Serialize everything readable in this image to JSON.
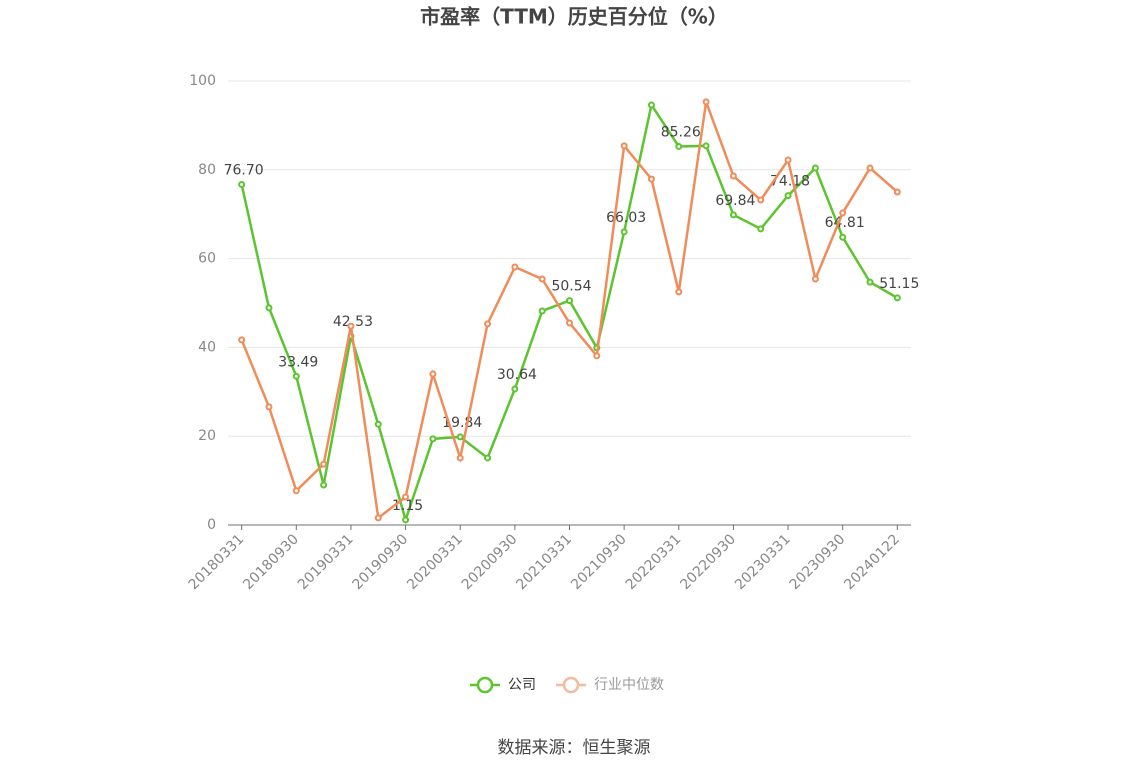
{
  "chart_data": {
    "type": "line",
    "title": "市盈率（TTM）历史百分位（%）",
    "categories": [
      "20180331",
      null,
      "20180930",
      null,
      "20190331",
      null,
      "20190930",
      null,
      "20200331",
      null,
      "20200930",
      null,
      "20210331",
      null,
      "20210930",
      null,
      "20220331",
      null,
      "20220930",
      null,
      "20230331",
      null,
      "20230930",
      null,
      "20240122"
    ],
    "series": [
      {
        "name": "公司",
        "color": "#5cc42f",
        "values": [
          76.7,
          48.9,
          33.49,
          9.0,
          42.53,
          22.7,
          1.15,
          19.4,
          19.84,
          15.1,
          30.64,
          48.2,
          50.54,
          39.9,
          66.03,
          94.6,
          85.26,
          85.4,
          69.84,
          66.7,
          74.18,
          80.4,
          64.81,
          54.7,
          51.15
        ],
        "value_labels": [
          "76.70",
          null,
          "33.49",
          null,
          "42.53",
          null,
          "1.15",
          null,
          "19.84",
          null,
          "30.64",
          null,
          "50.54",
          null,
          "66.03",
          null,
          "85.26",
          null,
          "69.84",
          null,
          "74.18",
          null,
          "64.81",
          null,
          "51.15"
        ]
      },
      {
        "name": "行业中位数",
        "color": "#f08c5a",
        "values": [
          41.7,
          26.6,
          7.7,
          13.7,
          44.8,
          1.6,
          6.3,
          34.0,
          15.1,
          45.3,
          58.1,
          55.4,
          45.5,
          38.1,
          85.4,
          77.9,
          52.5,
          95.3,
          78.6,
          73.2,
          82.2,
          55.4,
          70.3,
          80.4,
          75.0
        ]
      }
    ],
    "ylim": [
      0,
      100
    ],
    "yticks": [
      0,
      20,
      40,
      60,
      80,
      100
    ],
    "grid": true,
    "legend": "bottom",
    "source": "数据来源：恒生聚源"
  }
}
